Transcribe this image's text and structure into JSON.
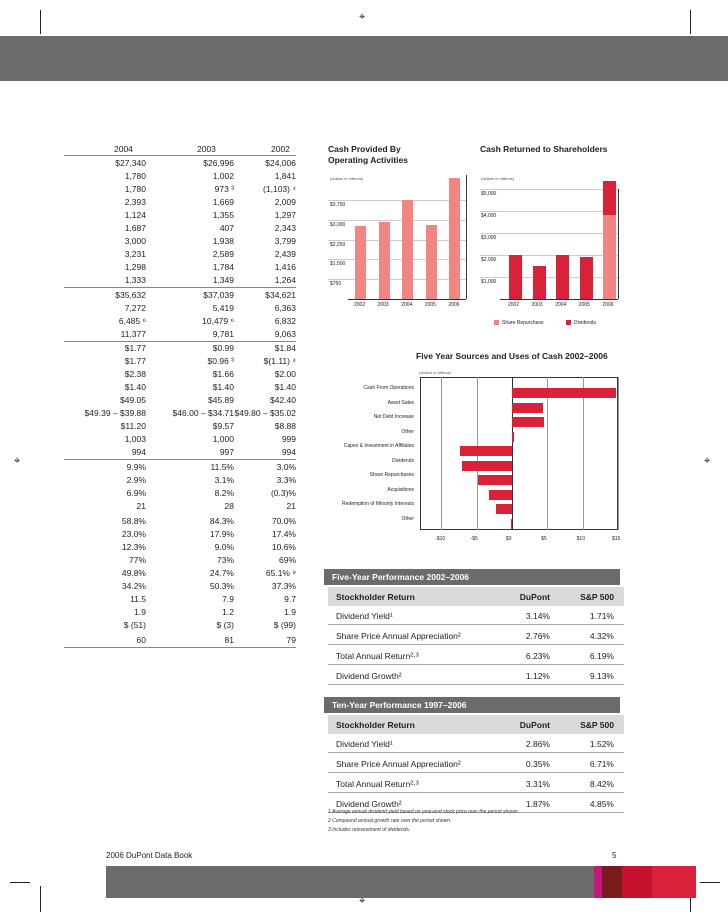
{
  "left_table": {
    "years": [
      "2004",
      "2003",
      "2002"
    ],
    "rows": [
      [
        "$27,340",
        "$26,996",
        "$24,006"
      ],
      [
        "1,780",
        "1,002",
        "1,841"
      ],
      [
        "1,780",
        "973 ³",
        "(1,103) ⁴"
      ],
      [
        "2,393",
        "1,669",
        "2,009"
      ],
      [
        "1,124",
        "1,355",
        "1,297"
      ],
      [
        "1,687",
        "407",
        "2,343"
      ],
      [
        "3,000",
        "1,938",
        "3,799"
      ],
      [
        "3,231",
        "2,589",
        "2,439"
      ],
      [
        "1,298",
        "1,784",
        "1,416"
      ],
      [
        "1,333",
        "1,349",
        "1,264"
      ],
      [
        "$35,632",
        "$37,039",
        "$34,621"
      ],
      [
        "7,272",
        "5,419",
        "6,363"
      ],
      [
        "6,485 ⁶",
        "10,479 ⁶",
        "6,832"
      ],
      [
        "11,377",
        "9,781",
        "9,063"
      ],
      [
        "$1.77",
        "$0.99",
        "$1.84"
      ],
      [
        "$1.77",
        "$0.96 ³",
        "$(1.11) ⁴"
      ],
      [
        "$2.38",
        "$1.66",
        "$2.00"
      ],
      [
        "$1.40",
        "$1.40",
        "$1.40"
      ],
      [
        "$49.05",
        "$45.89",
        "$42.40"
      ],
      [
        "$49.39 – $39.88",
        "$46.00 – $34.71",
        "$49.80 – $35.02"
      ],
      [
        "$11.20",
        "$9.57",
        "$8.88"
      ],
      [
        "1,003",
        "1,000",
        "999"
      ],
      [
        "994",
        "997",
        "994"
      ],
      [
        "9.9%",
        "11.5%",
        "3.0%"
      ],
      [
        "2.9%",
        "3.1%",
        "3.3%"
      ],
      [
        "6.9%",
        "8.2%",
        "(0.3)%"
      ],
      [
        "21",
        "28",
        "21"
      ],
      [
        "58.8%",
        "84.3%",
        "70.0%"
      ],
      [
        "23.0%",
        "17.9%",
        "17.4%"
      ],
      [
        "12.3%",
        "9.0%",
        "10.6%"
      ],
      [
        "77%",
        "73%",
        "69%"
      ],
      [
        "49.8%",
        "24.7%",
        "65.1% ⁹"
      ],
      [
        "34.2%",
        "50.3%",
        "37.3%"
      ],
      [
        "11.5",
        "7.9",
        "9.7"
      ],
      [
        "1.9",
        "1.2",
        "1.9"
      ],
      [
        "$ (51)",
        "$ (3)",
        "$ (99)"
      ],
      [
        "60",
        "81",
        "79"
      ]
    ]
  },
  "chart1": {
    "title_line1": "Cash Provided By",
    "title_line2": "Operating Activities",
    "subtitle": "(dollars in millions)"
  },
  "chart2": {
    "title": "Cash Returned to Shareholders",
    "subtitle": "(dollars in millions)",
    "legend": [
      "Share Repurchase",
      "Dividends"
    ]
  },
  "chart3": {
    "title": "Five Year Sources and Uses of Cash 2002–2006",
    "subtitle": "(dollars in billions)"
  },
  "chart_data": [
    {
      "type": "bar",
      "title": "Cash Provided By Operating Activities",
      "categories": [
        "2002",
        "2003",
        "2004",
        "2005",
        "2006"
      ],
      "values": [
        2750,
        2900,
        3750,
        2800,
        4600
      ],
      "y_ticks": [
        "$750",
        "$1,500",
        "$2,250",
        "$3,000",
        "$3,750"
      ],
      "ylim": [
        0,
        4700
      ]
    },
    {
      "type": "bar",
      "title": "Cash Returned to Shareholders",
      "categories": [
        "2002",
        "2003",
        "2004",
        "2005",
        "2006"
      ],
      "y_ticks": [
        "$1,000",
        "$2,000",
        "$3,000",
        "$4,000",
        "$5,000"
      ],
      "ylim": [
        0,
        5000
      ],
      "series": [
        {
          "name": "Share Repurchase",
          "values": [
            0,
            0,
            0,
            0,
            3800
          ]
        },
        {
          "name": "Dividends",
          "values": [
            2000,
            1500,
            2000,
            1900,
            1550
          ]
        }
      ]
    },
    {
      "type": "bar",
      "title": "Five Year Sources and Uses of Cash 2002–2006",
      "categories": [
        "Cash From Operations",
        "Asset Sales",
        "Net Debt Increase",
        "Other",
        "Capex & Investment in Affiliates",
        "Dividends",
        "Share Repurchases",
        "Acquisitions",
        "Redemption of Minority Interests",
        "Other"
      ],
      "values": [
        14.7,
        4.4,
        4.6,
        0.3,
        -7.4,
        -7.0,
        -4.8,
        -3.2,
        -2.3,
        -0.2
      ],
      "x_ticks": [
        "-$10",
        "-$5",
        "$0",
        "$5",
        "$10",
        "$15"
      ],
      "xlim": [
        -13,
        15
      ]
    }
  ],
  "five_year": {
    "title": "Five-Year Performance  2002–2006",
    "head": [
      "Stockholder Return",
      "DuPont",
      "S&P 500"
    ],
    "rows": [
      [
        "Dividend Yield¹",
        "3.14%",
        "1.71%"
      ],
      [
        "Share Price Annual Appreciation²",
        "2.76%",
        "4.32%"
      ],
      [
        "Total Annual Return²·³",
        "6.23%",
        "6.19%"
      ],
      [
        "Dividend Growth²",
        "1.12%",
        "9.13%"
      ]
    ]
  },
  "ten_year": {
    "title": "Ten-Year Performance  1997–2006",
    "head": [
      "Stockholder Return",
      "DuPont",
      "S&P 500"
    ],
    "rows": [
      [
        "Dividend Yield¹",
        "2.86%",
        "1.52%"
      ],
      [
        "Share Price Annual Appreciation²",
        "0.35%",
        "6.71%"
      ],
      [
        "Total Annual Return²·³",
        "3.31%",
        "8.42%"
      ],
      [
        "Dividend Growth²",
        "1.87%",
        "4.85%"
      ]
    ]
  },
  "footnotes": [
    "1  Average annual dividend yield based on year-end stock price over the period shown.",
    "2  Compound annual growth rate over the period shown.",
    "3  Includes reinvestment of dividends."
  ],
  "footer": {
    "left": "2006 DuPont Data Book",
    "page": "5"
  },
  "colors": {
    "band": "#6b6b6b",
    "pink": "#f08582",
    "red": "#d9213a"
  }
}
